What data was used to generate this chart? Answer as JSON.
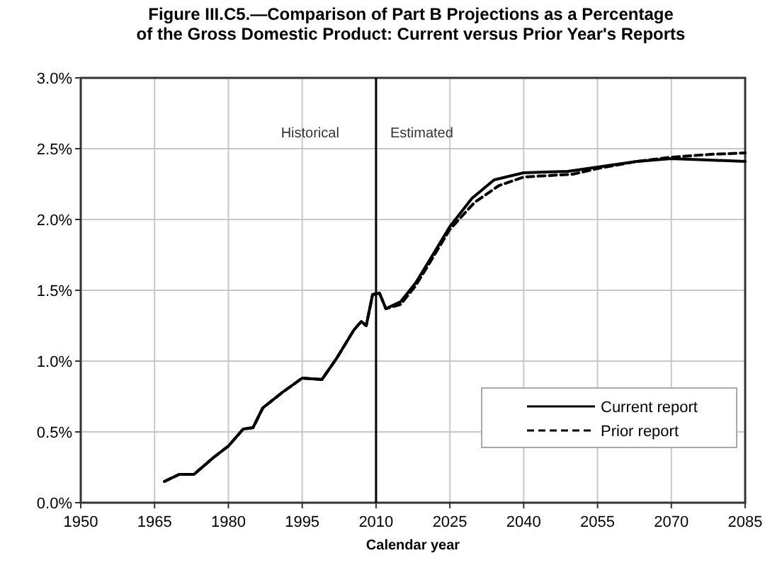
{
  "chart_data": {
    "type": "line",
    "title": "Figure III.C5.—Comparison of Part B Projections as a Percentage\nof the Gross Domestic Product: Current versus Prior Year's Reports",
    "xlabel": "Calendar year",
    "xlim": [
      1950,
      2085
    ],
    "xticks": [
      1950,
      1965,
      1980,
      1995,
      2010,
      2025,
      2040,
      2055,
      2070,
      2085
    ],
    "ylim": [
      0,
      3
    ],
    "yticks": [
      {
        "value": 0,
        "label": "0.0%"
      },
      {
        "value": 0.5,
        "label": "0.5%"
      },
      {
        "value": 1,
        "label": "1.0%"
      },
      {
        "value": 1.5,
        "label": "1.5%"
      },
      {
        "value": 2,
        "label": "2.0%"
      },
      {
        "value": 2.5,
        "label": "2.5%"
      },
      {
        "value": 3,
        "label": "3.0%"
      }
    ],
    "grid": true,
    "legend": "bottom right",
    "ref_lines": [
      {
        "axis": "x",
        "value": 2010,
        "color": "#000000"
      }
    ],
    "annotations": [
      "Historical",
      "Estimated"
    ],
    "series": [
      {
        "name": "Current report",
        "color": "#000000",
        "line_style": "solid",
        "x": [
          1967,
          1970,
          1973,
          1977,
          1980,
          1983,
          1985,
          1987,
          1991,
          1995,
          1999,
          2002,
          2005.5,
          2007,
          2008,
          2009.3,
          2010.7,
          2012,
          2015,
          2018,
          2021,
          2025,
          2029.5,
          2034,
          2040,
          2049,
          2055,
          2063,
          2070,
          2077.5,
          2085
        ],
        "values": [
          0.15,
          0.2,
          0.2,
          0.32,
          0.4,
          0.52,
          0.53,
          0.67,
          0.78,
          0.88,
          0.87,
          1.02,
          1.22,
          1.28,
          1.25,
          1.47,
          1.48,
          1.37,
          1.42,
          1.55,
          1.72,
          1.95,
          2.15,
          2.28,
          2.33,
          2.34,
          2.37,
          2.41,
          2.43,
          2.42,
          2.41
        ]
      },
      {
        "name": "Prior report",
        "color": "#000000",
        "line_style": "dashed",
        "x": [
          1967,
          1970,
          1973,
          1977,
          1980,
          1983,
          1985,
          1987,
          1991,
          1995,
          1999,
          2002,
          2005.5,
          2007,
          2008,
          2009.3,
          2010.7,
          2012,
          2015,
          2018,
          2021,
          2025,
          2030,
          2035,
          2040,
          2050,
          2055,
          2063,
          2070,
          2078,
          2085
        ],
        "values": [
          0.15,
          0.2,
          0.2,
          0.32,
          0.4,
          0.52,
          0.53,
          0.67,
          0.78,
          0.88,
          0.87,
          1.02,
          1.22,
          1.28,
          1.25,
          1.47,
          1.48,
          1.37,
          1.4,
          1.53,
          1.7,
          1.93,
          2.12,
          2.24,
          2.3,
          2.32,
          2.36,
          2.41,
          2.44,
          2.46,
          2.47
        ]
      }
    ]
  }
}
